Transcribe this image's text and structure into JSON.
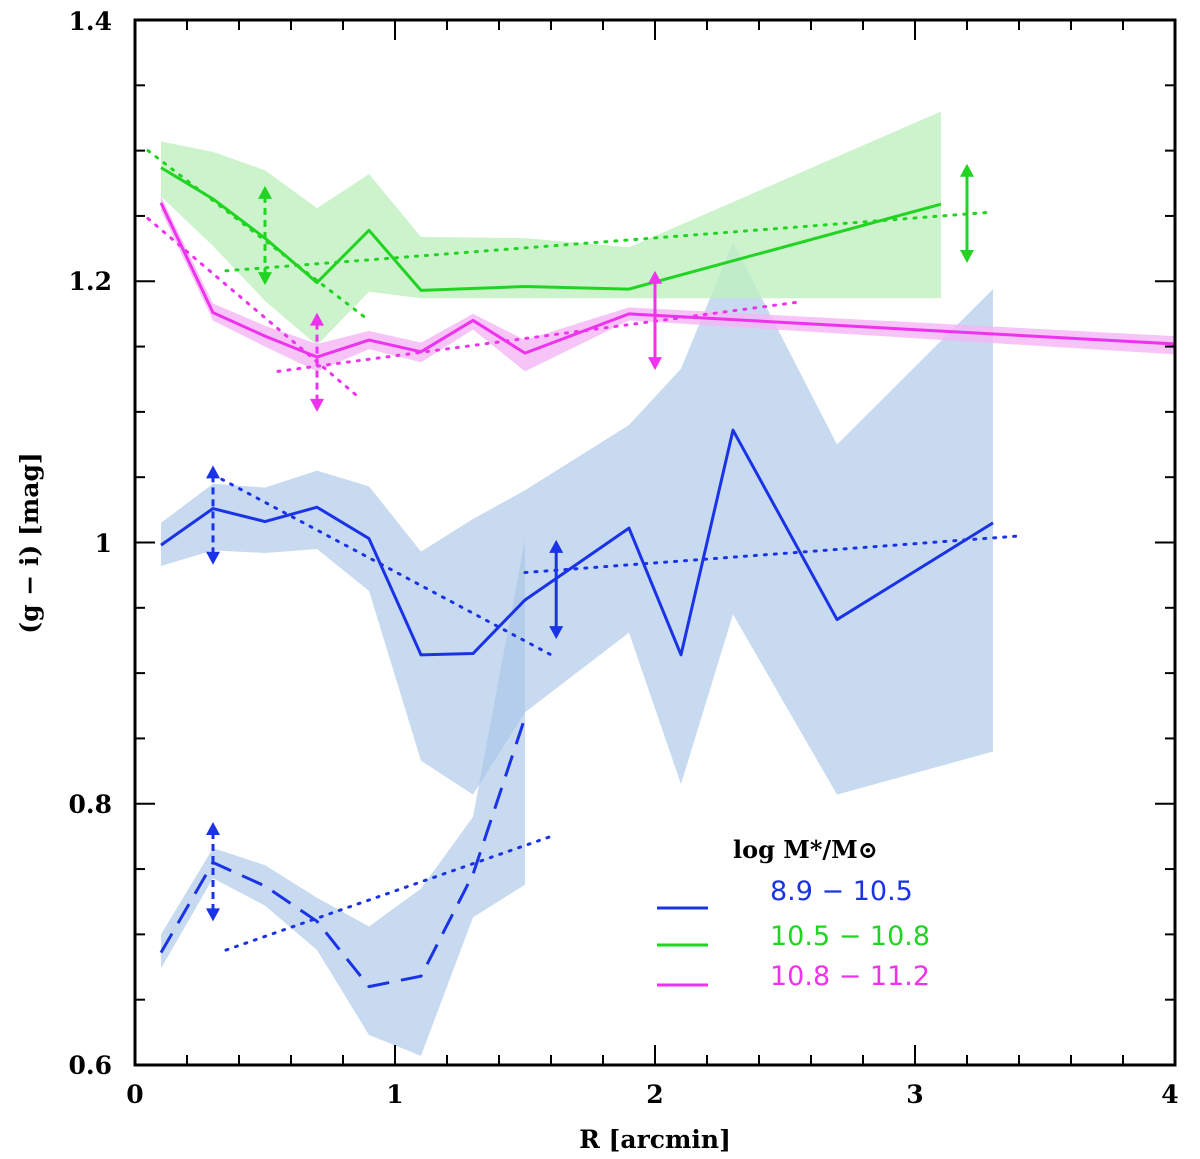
{
  "chart_data": {
    "type": "line",
    "xlabel": "R [arcmin]",
    "ylabel": "(g − i) [mag]",
    "xlim": [
      0,
      4
    ],
    "ylim": [
      0.6,
      1.4
    ],
    "xticks": [
      0,
      1,
      2,
      3,
      4
    ],
    "xtick_labels": [
      "0",
      "1",
      "2",
      "3",
      "4"
    ],
    "yticks": [
      0.6,
      0.8,
      1.0,
      1.2,
      1.4
    ],
    "ytick_labels": [
      "0.6",
      "0.8",
      "1",
      "1.2",
      "1.4"
    ],
    "grid": false,
    "legend": {
      "title": "log M*/M⊙",
      "placement": "bottom-right",
      "entries": [
        "8.9 − 10.5",
        "10.5 − 10.8",
        "10.8 − 11.2"
      ]
    },
    "colors": {
      "blue": "#1a33e6",
      "blue_band": "#a9c6e6",
      "green": "#22d422",
      "green_band": "#bff0bf",
      "magenta": "#ee33ee",
      "magenta_band": "#f5b5f5"
    },
    "series": [
      {
        "name": "8.9 − 10.5",
        "style": "solid",
        "color": "#1a33e6",
        "x": [
          0.1,
          0.3,
          0.5,
          0.7,
          0.9,
          1.1,
          1.3,
          1.5,
          1.9,
          2.1,
          2.3,
          2.7,
          3.3
        ],
        "y": [
          0.998,
          1.026,
          1.016,
          1.027,
          1.003,
          0.914,
          0.915,
          0.956,
          1.011,
          0.914,
          1.086,
          0.941,
          1.015
        ],
        "band_upper": [
          1.015,
          1.045,
          1.042,
          1.055,
          1.043,
          0.993,
          1.018,
          1.04,
          1.09,
          1.133,
          1.23,
          1.075,
          1.194
        ],
        "band_lower": [
          0.982,
          0.994,
          0.992,
          0.995,
          0.963,
          0.833,
          0.807,
          0.87,
          0.931,
          0.815,
          0.945,
          0.807,
          0.84
        ]
      },
      {
        "name": "8.9 − 10.5 (inner)",
        "style": "dashed",
        "color": "#1a33e6",
        "x": [
          0.1,
          0.3,
          0.5,
          0.7,
          0.9,
          1.1,
          1.3,
          1.5
        ],
        "y": [
          0.686,
          0.755,
          0.737,
          0.71,
          0.66,
          0.668,
          0.746,
          0.866
        ],
        "band_upper": [
          0.7,
          0.766,
          0.753,
          0.728,
          0.706,
          0.735,
          0.79,
          1.002
        ],
        "band_lower": [
          0.674,
          0.743,
          0.722,
          0.688,
          0.623,
          0.607,
          0.713,
          0.738
        ]
      },
      {
        "name": "10.5 − 10.8",
        "style": "solid",
        "color": "#22d422",
        "x": [
          0.1,
          0.3,
          0.5,
          0.7,
          0.9,
          1.1,
          1.5,
          1.9,
          3.1
        ],
        "y": [
          1.287,
          1.263,
          1.233,
          1.199,
          1.239,
          1.193,
          1.196,
          1.194,
          1.259
        ],
        "band_upper": [
          1.307,
          1.299,
          1.285,
          1.256,
          1.282,
          1.234,
          1.233,
          1.226,
          1.33
        ],
        "band_lower": [
          1.265,
          1.227,
          1.185,
          1.151,
          1.192,
          1.187,
          1.187,
          1.187,
          1.187
        ]
      },
      {
        "name": "10.8 − 11.2",
        "style": "solid",
        "color": "#ee33ee",
        "x": [
          0.1,
          0.3,
          0.5,
          0.7,
          0.9,
          1.1,
          1.3,
          1.5,
          1.9,
          4.0
        ],
        "y": [
          1.26,
          1.176,
          1.158,
          1.142,
          1.155,
          1.146,
          1.17,
          1.145,
          1.175,
          1.152
        ],
        "band_upper": [
          1.265,
          1.183,
          1.166,
          1.152,
          1.162,
          1.153,
          1.175,
          1.155,
          1.18,
          1.158
        ],
        "band_lower": [
          1.254,
          1.17,
          1.15,
          1.131,
          1.148,
          1.138,
          1.163,
          1.131,
          1.17,
          1.144
        ]
      }
    ],
    "fit_lines": [
      {
        "color": "#1a33e6",
        "x": [
          0.3,
          1.6
        ],
        "y": [
          1.052,
          0.914
        ]
      },
      {
        "color": "#1a33e6",
        "x": [
          1.5,
          3.4
        ],
        "y": [
          0.977,
          1.005
        ]
      },
      {
        "color": "#1a33e6",
        "x": [
          0.35,
          1.6
        ],
        "y": [
          0.688,
          0.775
        ]
      },
      {
        "color": "#22d422",
        "x": [
          0.05,
          0.9
        ],
        "y": [
          1.3,
          1.17
        ]
      },
      {
        "color": "#22d422",
        "x": [
          0.35,
          3.3
        ],
        "y": [
          1.208,
          1.253
        ]
      },
      {
        "color": "#ee33ee",
        "x": [
          0.05,
          0.85
        ],
        "y": [
          1.248,
          1.113
        ]
      },
      {
        "color": "#ee33ee",
        "x": [
          0.55,
          2.55
        ],
        "y": [
          1.131,
          1.184
        ]
      }
    ],
    "error_arrows": [
      {
        "color": "#22d422",
        "style": "dashed",
        "x": 0.5,
        "y_low": 1.197,
        "y_high": 1.273
      },
      {
        "color": "#22d422",
        "style": "solid",
        "x": 3.2,
        "y_low": 1.214,
        "y_high": 1.29
      },
      {
        "color": "#ee33ee",
        "style": "dashed",
        "x": 0.7,
        "y_low": 1.1,
        "y_high": 1.176
      },
      {
        "color": "#ee33ee",
        "style": "solid",
        "x": 2.0,
        "y_low": 1.132,
        "y_high": 1.208
      },
      {
        "color": "#1a33e6",
        "style": "dashed",
        "x": 0.3,
        "y_low": 0.983,
        "y_high": 1.059
      },
      {
        "color": "#1a33e6",
        "style": "solid",
        "x": 1.62,
        "y_low": 0.926,
        "y_high": 1.002
      },
      {
        "color": "#1a33e6",
        "style": "dashed",
        "x": 0.3,
        "y_low": 0.71,
        "y_high": 0.786
      }
    ]
  }
}
